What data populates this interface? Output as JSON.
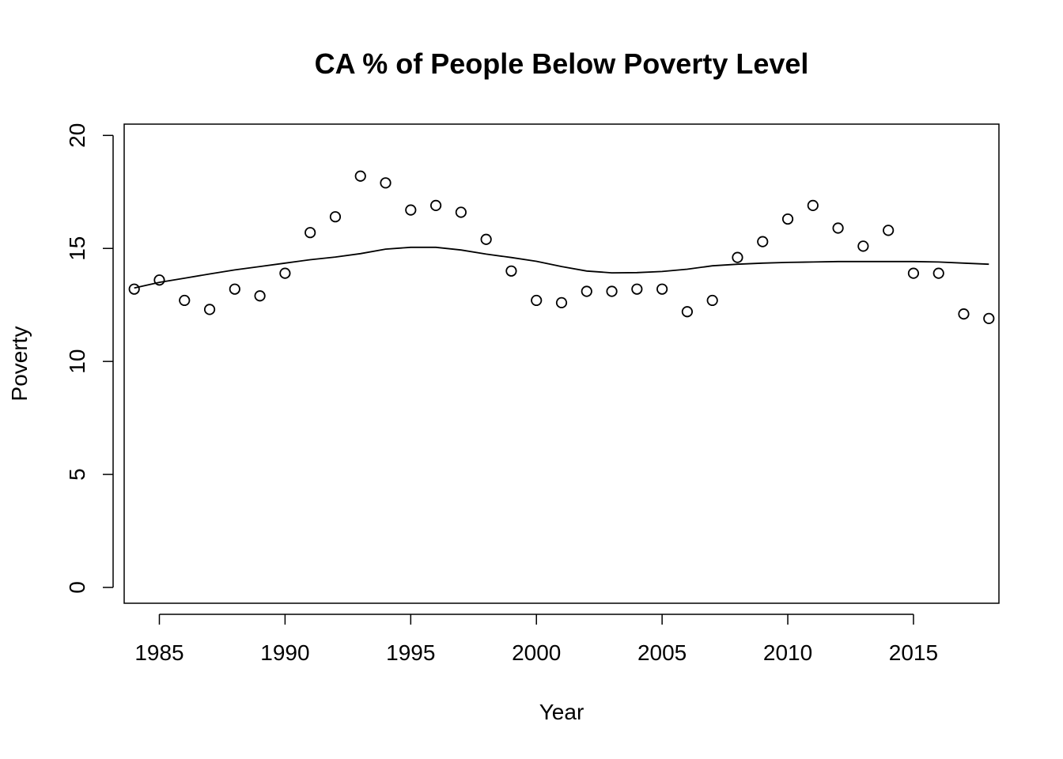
{
  "chart_data": {
    "type": "scatter",
    "title": "CA % of People Below Poverty Level",
    "xlabel": "Year",
    "ylabel": "Poverty",
    "xlim": [
      1983.6,
      2018.4
    ],
    "ylim": [
      -0.7,
      20.5
    ],
    "xticks": [
      1985,
      1990,
      1995,
      2000,
      2005,
      2010,
      2015
    ],
    "yticks": [
      0,
      5,
      10,
      15,
      20
    ],
    "grid": false,
    "points": {
      "x": [
        1984,
        1985,
        1986,
        1987,
        1988,
        1989,
        1990,
        1991,
        1992,
        1993,
        1994,
        1995,
        1996,
        1997,
        1998,
        1999,
        2000,
        2001,
        2002,
        2003,
        2004,
        2005,
        2006,
        2007,
        2008,
        2009,
        2010,
        2011,
        2012,
        2013,
        2014,
        2015,
        2016,
        2017,
        2018
      ],
      "y": [
        13.2,
        13.6,
        12.7,
        12.3,
        13.2,
        12.9,
        13.9,
        15.7,
        16.4,
        18.2,
        17.9,
        16.7,
        16.9,
        16.6,
        15.4,
        14.0,
        12.7,
        12.6,
        13.1,
        13.1,
        13.2,
        13.2,
        12.2,
        12.7,
        14.6,
        15.3,
        16.3,
        16.9,
        15.9,
        15.1,
        15.8,
        13.9,
        13.9,
        12.1,
        11.9
      ]
    },
    "smooth": {
      "x": [
        1984,
        1985,
        1986,
        1987,
        1988,
        1989,
        1990,
        1991,
        1992,
        1993,
        1994,
        1995,
        1996,
        1997,
        1998,
        1999,
        2000,
        2001,
        2002,
        2003,
        2004,
        2005,
        2006,
        2007,
        2008,
        2009,
        2010,
        2011,
        2012,
        2013,
        2014,
        2015,
        2016,
        2017,
        2018
      ],
      "y": [
        13.25,
        13.5,
        13.68,
        13.87,
        14.05,
        14.2,
        14.35,
        14.5,
        14.62,
        14.77,
        14.97,
        15.05,
        15.05,
        14.93,
        14.75,
        14.6,
        14.43,
        14.2,
        14.0,
        13.92,
        13.93,
        13.98,
        14.08,
        14.23,
        14.3,
        14.35,
        14.38,
        14.4,
        14.42,
        14.42,
        14.42,
        14.42,
        14.4,
        14.35,
        14.3
      ]
    }
  }
}
